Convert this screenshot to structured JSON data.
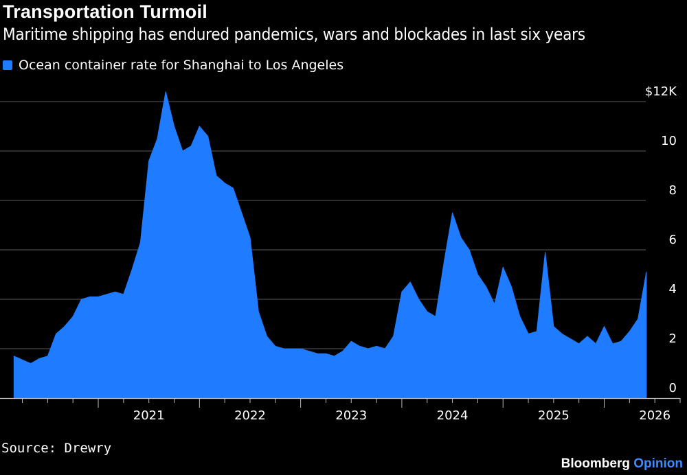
{
  "header": {
    "title": "Transportation Turmoil",
    "subtitle": "Maritime shipping has endured pandemics, wars and blockades in last six years"
  },
  "legend": {
    "label": "Ocean container rate for Shanghai to Los Angeles",
    "color": "#1f7bff"
  },
  "footer": {
    "source": "Source: Drewry",
    "brand_main": "Bloomberg",
    "brand_accent": "Opinion",
    "brand_accent_color": "#3a8cff"
  },
  "chart_data": {
    "type": "area",
    "series": [
      {
        "color": "#1f7bff",
        "x": [
          "2020-03",
          "2020-04",
          "2020-05",
          "2020-06",
          "2020-07",
          "2020-08",
          "2020-09",
          "2020-10",
          "2020-11",
          "2020-12",
          "2021-01",
          "2021-02",
          "2021-03",
          "2021-04",
          "2021-05",
          "2021-06",
          "2021-07",
          "2021-08",
          "2021-09",
          "2021-10",
          "2021-11",
          "2021-12",
          "2022-01",
          "2022-02",
          "2022-03",
          "2022-04",
          "2022-05",
          "2022-06",
          "2022-07",
          "2022-08",
          "2022-09",
          "2022-10",
          "2022-11",
          "2022-12",
          "2023-01",
          "2023-02",
          "2023-03",
          "2023-04",
          "2023-05",
          "2023-06",
          "2023-07",
          "2023-08",
          "2023-09",
          "2023-10",
          "2023-11",
          "2023-12",
          "2024-01",
          "2024-02",
          "2024-03",
          "2024-04",
          "2024-05",
          "2024-06",
          "2024-07",
          "2024-08",
          "2024-09",
          "2024-10",
          "2024-11",
          "2024-12",
          "2025-01",
          "2025-02",
          "2025-03",
          "2025-04",
          "2025-05",
          "2025-06",
          "2025-07",
          "2025-08",
          "2025-09",
          "2025-10",
          "2025-11",
          "2025-12",
          "2026-01",
          "2026-02",
          "2026-03",
          "2026-04",
          "2026-05",
          "2026-06"
        ],
        "values": [
          1.7,
          1.55,
          1.4,
          1.6,
          1.7,
          2.6,
          2.9,
          3.3,
          4.0,
          4.1,
          4.1,
          4.2,
          4.3,
          4.2,
          5.2,
          6.3,
          9.6,
          10.5,
          12.4,
          11.0,
          10.0,
          10.2,
          11.0,
          10.6,
          9.0,
          8.7,
          8.5,
          7.5,
          6.5,
          3.5,
          2.5,
          2.1,
          2.0,
          2.0,
          2.0,
          1.9,
          1.8,
          1.8,
          1.7,
          1.9,
          2.3,
          2.1,
          2.0,
          2.1,
          2.0,
          2.5,
          4.3,
          4.7,
          4.0,
          3.5,
          3.3,
          5.5,
          7.5,
          6.5,
          6.0,
          5.0,
          4.5,
          3.8,
          5.3,
          4.5,
          3.3,
          2.6,
          2.7,
          5.9,
          2.9,
          2.6,
          2.4,
          2.2,
          2.5,
          2.2,
          2.9,
          2.2,
          2.3,
          2.7,
          3.2,
          5.1
        ]
      }
    ],
    "ylim": [
      0,
      12
    ],
    "yticks": [
      0,
      2,
      4,
      6,
      8,
      10,
      12
    ],
    "ytick_labels": [
      "0",
      "2",
      "4",
      "6",
      "8",
      "10",
      "$12K"
    ],
    "xtick_labels": [
      "2021",
      "2022",
      "2023",
      "2024",
      "2025",
      "2026"
    ],
    "xlim": [
      "2020-02",
      "2026-10"
    ],
    "grid": true,
    "legend_position": "top-left"
  }
}
